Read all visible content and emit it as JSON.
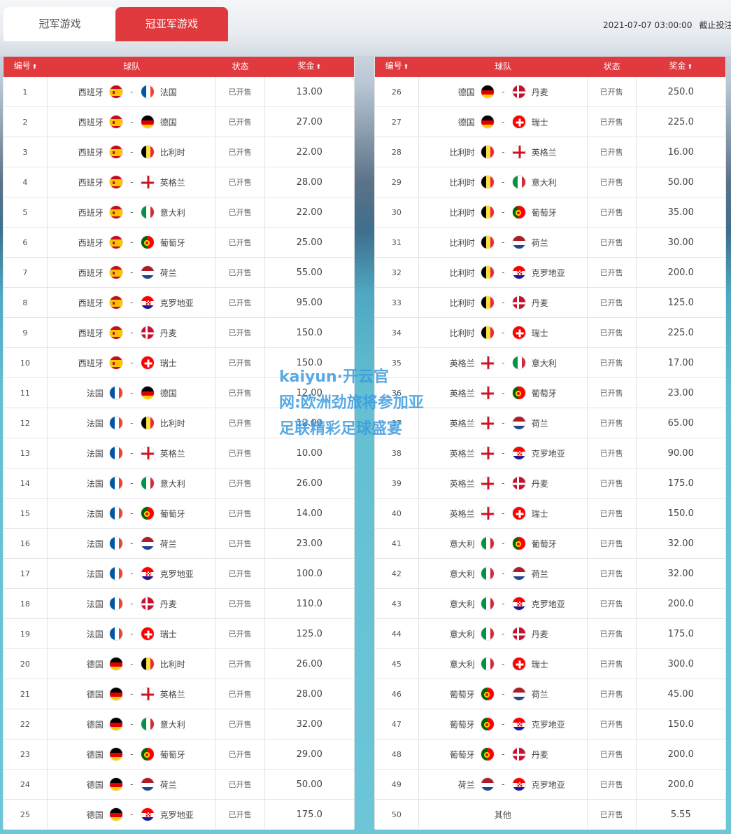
{
  "tabs": [
    {
      "label": "冠军游戏",
      "active": false
    },
    {
      "label": "冠亚军游戏",
      "active": true
    }
  ],
  "deadline": {
    "time": "2021-07-07 03:00:00",
    "label": "截止投注"
  },
  "columns": {
    "id": "编号",
    "team": "球队",
    "status": "状态",
    "prize": "奖金",
    "sort_icon": "⬆"
  },
  "status_text": "已开售",
  "watermark": [
    "kaiyun·开云官",
    "网:欧洲劲旅将参加亚",
    "足联精彩足球盛宴"
  ],
  "flag_colors": {
    "西班牙": "spain",
    "法国": "france",
    "德国": "germany",
    "比利时": "belgium",
    "英格兰": "england",
    "意大利": "italy",
    "葡萄牙": "portugal",
    "荷兰": "netherlands",
    "克罗地亚": "croatia",
    "丹麦": "denmark",
    "瑞士": "switzerland"
  },
  "rows_left": [
    {
      "id": "1",
      "a": "西班牙",
      "b": "法国",
      "prize": "13.00"
    },
    {
      "id": "2",
      "a": "西班牙",
      "b": "德国",
      "prize": "27.00"
    },
    {
      "id": "3",
      "a": "西班牙",
      "b": "比利时",
      "prize": "22.00"
    },
    {
      "id": "4",
      "a": "西班牙",
      "b": "英格兰",
      "prize": "28.00"
    },
    {
      "id": "5",
      "a": "西班牙",
      "b": "意大利",
      "prize": "22.00"
    },
    {
      "id": "6",
      "a": "西班牙",
      "b": "葡萄牙",
      "prize": "25.00"
    },
    {
      "id": "7",
      "a": "西班牙",
      "b": "荷兰",
      "prize": "55.00"
    },
    {
      "id": "8",
      "a": "西班牙",
      "b": "克罗地亚",
      "prize": "95.00"
    },
    {
      "id": "9",
      "a": "西班牙",
      "b": "丹麦",
      "prize": "150.0"
    },
    {
      "id": "10",
      "a": "西班牙",
      "b": "瑞士",
      "prize": "150.0"
    },
    {
      "id": "11",
      "a": "法国",
      "b": "德国",
      "prize": "12.00"
    },
    {
      "id": "12",
      "a": "法国",
      "b": "比利时",
      "prize": "12.00"
    },
    {
      "id": "13",
      "a": "法国",
      "b": "英格兰",
      "prize": "10.00"
    },
    {
      "id": "14",
      "a": "法国",
      "b": "意大利",
      "prize": "26.00"
    },
    {
      "id": "15",
      "a": "法国",
      "b": "葡萄牙",
      "prize": "14.00"
    },
    {
      "id": "16",
      "a": "法国",
      "b": "荷兰",
      "prize": "23.00"
    },
    {
      "id": "17",
      "a": "法国",
      "b": "克罗地亚",
      "prize": "100.0"
    },
    {
      "id": "18",
      "a": "法国",
      "b": "丹麦",
      "prize": "110.0"
    },
    {
      "id": "19",
      "a": "法国",
      "b": "瑞士",
      "prize": "125.0"
    },
    {
      "id": "20",
      "a": "德国",
      "b": "比利时",
      "prize": "26.00"
    },
    {
      "id": "21",
      "a": "德国",
      "b": "英格兰",
      "prize": "28.00"
    },
    {
      "id": "22",
      "a": "德国",
      "b": "意大利",
      "prize": "32.00"
    },
    {
      "id": "23",
      "a": "德国",
      "b": "葡萄牙",
      "prize": "29.00"
    },
    {
      "id": "24",
      "a": "德国",
      "b": "荷兰",
      "prize": "50.00"
    },
    {
      "id": "25",
      "a": "德国",
      "b": "克罗地亚",
      "prize": "175.0"
    }
  ],
  "rows_right": [
    {
      "id": "26",
      "a": "德国",
      "b": "丹麦",
      "prize": "250.0"
    },
    {
      "id": "27",
      "a": "德国",
      "b": "瑞士",
      "prize": "225.0"
    },
    {
      "id": "28",
      "a": "比利时",
      "b": "英格兰",
      "prize": "16.00"
    },
    {
      "id": "29",
      "a": "比利时",
      "b": "意大利",
      "prize": "50.00"
    },
    {
      "id": "30",
      "a": "比利时",
      "b": "葡萄牙",
      "prize": "35.00"
    },
    {
      "id": "31",
      "a": "比利时",
      "b": "荷兰",
      "prize": "30.00"
    },
    {
      "id": "32",
      "a": "比利时",
      "b": "克罗地亚",
      "prize": "200.0"
    },
    {
      "id": "33",
      "a": "比利时",
      "b": "丹麦",
      "prize": "125.0"
    },
    {
      "id": "34",
      "a": "比利时",
      "b": "瑞士",
      "prize": "225.0"
    },
    {
      "id": "35",
      "a": "英格兰",
      "b": "意大利",
      "prize": "17.00"
    },
    {
      "id": "36",
      "a": "英格兰",
      "b": "葡萄牙",
      "prize": "23.00"
    },
    {
      "id": "37",
      "a": "英格兰",
      "b": "荷兰",
      "prize": "65.00"
    },
    {
      "id": "38",
      "a": "英格兰",
      "b": "克罗地亚",
      "prize": "90.00"
    },
    {
      "id": "39",
      "a": "英格兰",
      "b": "丹麦",
      "prize": "175.0"
    },
    {
      "id": "40",
      "a": "英格兰",
      "b": "瑞士",
      "prize": "150.0"
    },
    {
      "id": "41",
      "a": "意大利",
      "b": "葡萄牙",
      "prize": "32.00"
    },
    {
      "id": "42",
      "a": "意大利",
      "b": "荷兰",
      "prize": "32.00"
    },
    {
      "id": "43",
      "a": "意大利",
      "b": "克罗地亚",
      "prize": "200.0"
    },
    {
      "id": "44",
      "a": "意大利",
      "b": "丹麦",
      "prize": "175.0"
    },
    {
      "id": "45",
      "a": "意大利",
      "b": "瑞士",
      "prize": "300.0"
    },
    {
      "id": "46",
      "a": "葡萄牙",
      "b": "荷兰",
      "prize": "45.00"
    },
    {
      "id": "47",
      "a": "葡萄牙",
      "b": "克罗地亚",
      "prize": "150.0"
    },
    {
      "id": "48",
      "a": "葡萄牙",
      "b": "丹麦",
      "prize": "200.0"
    },
    {
      "id": "49",
      "a": "荷兰",
      "b": "克罗地亚",
      "prize": "200.0"
    },
    {
      "id": "50",
      "other": "其他",
      "prize": "5.55"
    }
  ]
}
